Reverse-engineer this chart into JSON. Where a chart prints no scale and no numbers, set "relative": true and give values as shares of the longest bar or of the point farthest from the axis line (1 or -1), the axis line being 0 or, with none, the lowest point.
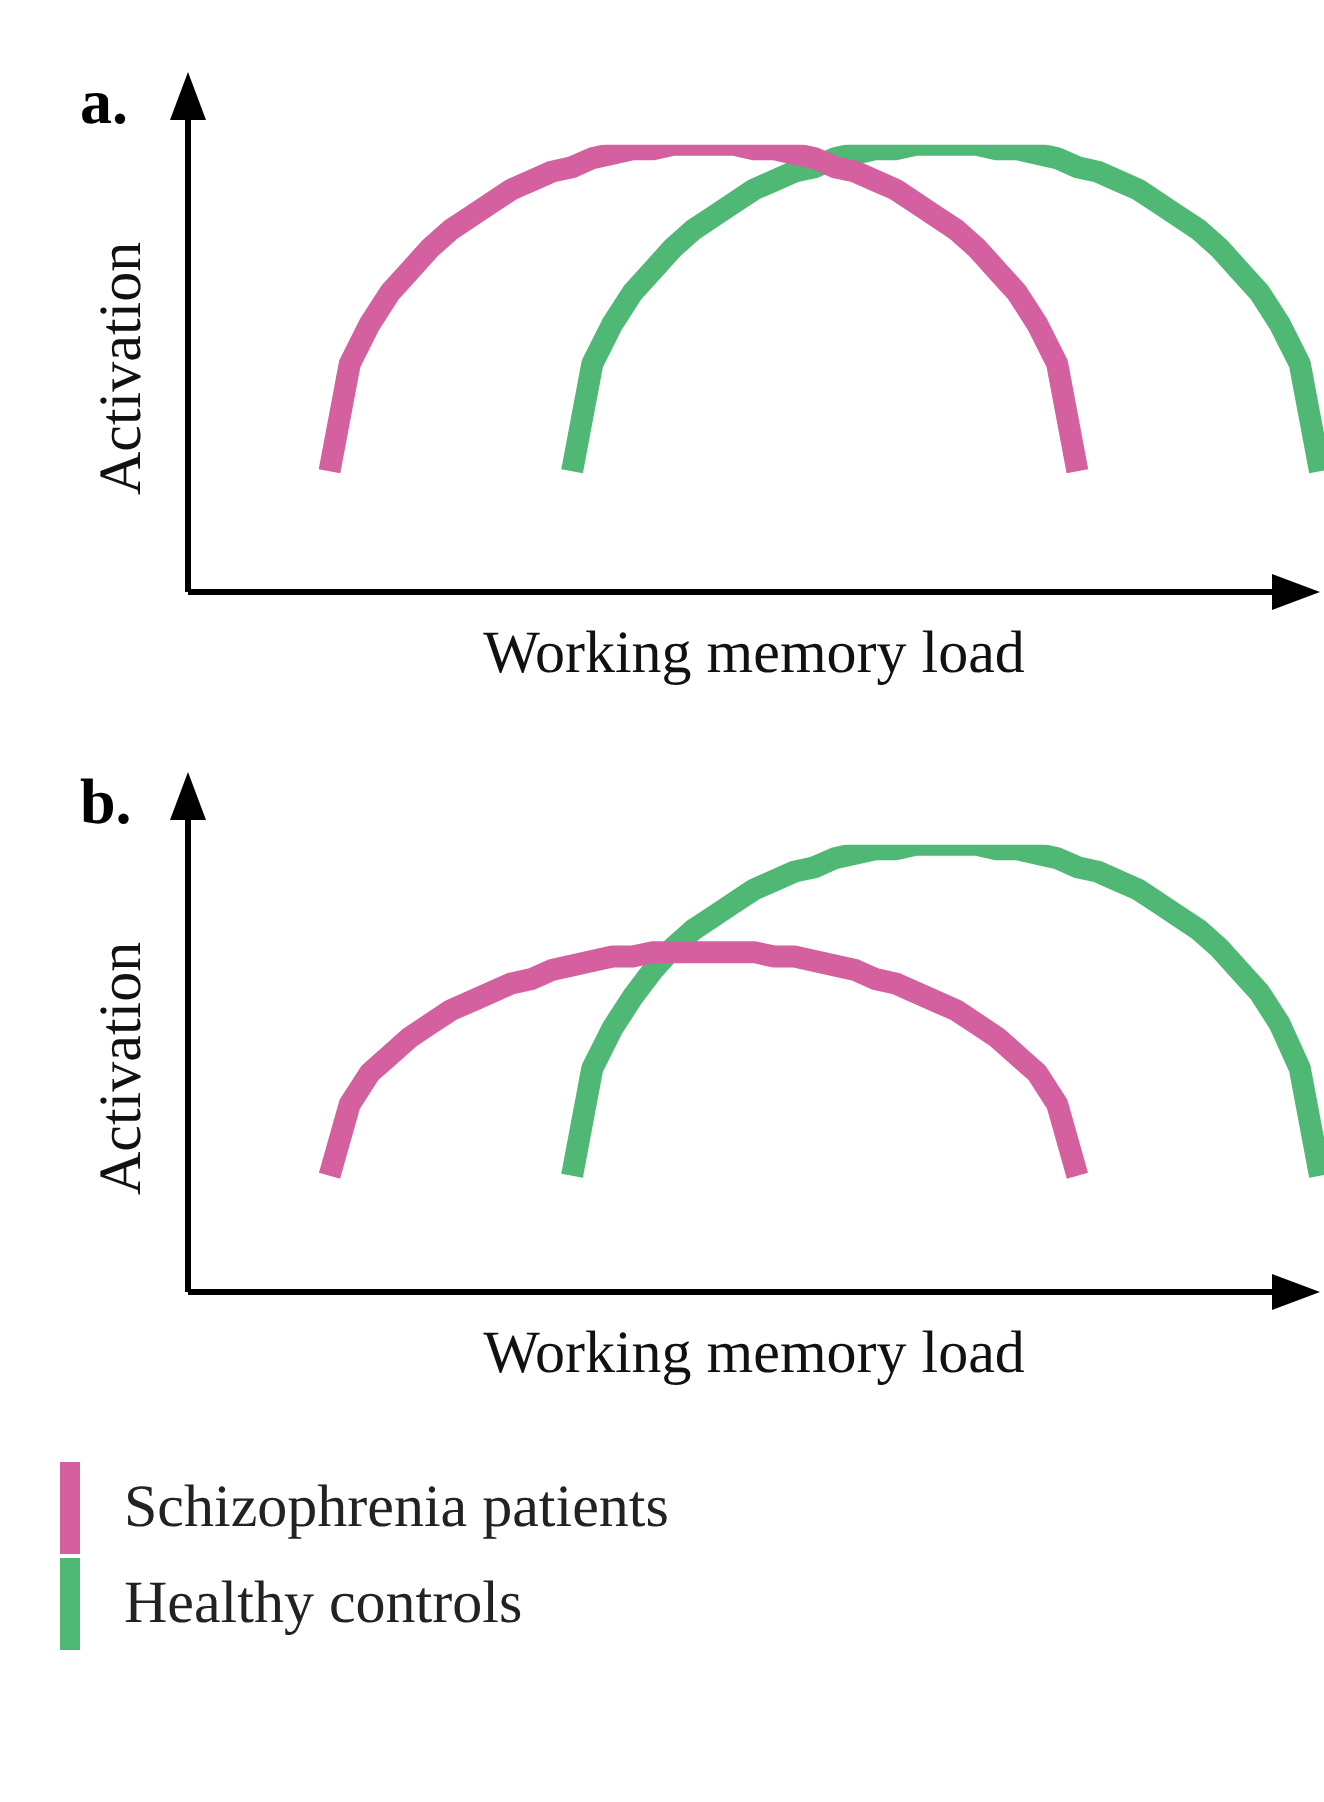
{
  "chart_data": [
    {
      "type": "line",
      "title": "a.",
      "xlabel": "Working memory load",
      "ylabel": "Activation",
      "relative": true,
      "tick_labels": false,
      "grid": false,
      "marker": "none",
      "line_style": "solid",
      "categories": [
        null,
        null,
        null,
        null,
        null,
        null,
        null,
        null,
        null,
        null,
        null,
        null,
        null,
        null,
        null,
        null,
        null,
        null,
        null,
        null,
        null,
        null,
        null,
        null,
        null,
        null,
        null,
        null,
        null,
        null,
        null,
        null,
        null,
        null,
        null,
        null,
        null,
        null,
        null,
        null,
        null,
        null,
        null,
        null,
        null,
        null,
        null,
        null,
        null,
        null,
        null,
        null,
        null,
        null,
        null,
        null,
        null
      ],
      "series": [
        {
          "color": "#d4609f",
          "values": [
            null,
            null,
            null,
            null,
            null,
            null,
            null,
            0.27,
            0.51,
            0.6,
            0.67,
            0.72,
            0.77,
            0.81,
            0.84,
            0.87,
            0.9,
            0.92,
            0.94,
            0.95,
            0.97,
            0.98,
            0.99,
            0.99,
            1,
            1,
            1,
            1,
            0.99,
            0.99,
            0.98,
            0.97,
            0.95,
            0.94,
            0.92,
            0.9,
            0.87,
            0.84,
            0.81,
            0.77,
            0.72,
            0.67,
            0.6,
            0.51,
            0.27,
            null,
            null,
            null,
            null,
            null,
            null,
            null,
            null,
            null,
            null,
            null,
            null
          ]
        },
        {
          "color": "#4fb874",
          "values": [
            null,
            null,
            null,
            null,
            null,
            null,
            null,
            null,
            null,
            null,
            null,
            null,
            null,
            null,
            null,
            null,
            null,
            null,
            null,
            0.27,
            0.51,
            0.6,
            0.67,
            0.72,
            0.77,
            0.81,
            0.84,
            0.87,
            0.9,
            0.92,
            0.94,
            0.95,
            0.97,
            0.98,
            0.99,
            0.99,
            1,
            1,
            1,
            1,
            0.99,
            0.99,
            0.98,
            0.97,
            0.95,
            0.94,
            0.92,
            0.9,
            0.87,
            0.84,
            0.81,
            0.77,
            0.72,
            0.67,
            0.6,
            0.51,
            0.27
          ]
        }
      ]
    },
    {
      "type": "line",
      "title": "b.",
      "xlabel": "Working memory load",
      "ylabel": "Activation",
      "relative": true,
      "tick_labels": false,
      "grid": false,
      "marker": "none",
      "line_style": "solid",
      "legend": "bottom left",
      "categories": [
        null,
        null,
        null,
        null,
        null,
        null,
        null,
        null,
        null,
        null,
        null,
        null,
        null,
        null,
        null,
        null,
        null,
        null,
        null,
        null,
        null,
        null,
        null,
        null,
        null,
        null,
        null,
        null,
        null,
        null,
        null,
        null,
        null,
        null,
        null,
        null,
        null,
        null,
        null,
        null,
        null,
        null,
        null,
        null,
        null,
        null,
        null,
        null,
        null,
        null,
        null,
        null,
        null,
        null,
        null,
        null,
        null
      ],
      "series": [
        {
          "name": "Schizophrenia patients",
          "color": "#d4609f",
          "values": [
            null,
            null,
            null,
            null,
            null,
            null,
            null,
            0.26,
            0.42,
            0.49,
            0.53,
            0.57,
            0.6,
            0.63,
            0.65,
            0.67,
            0.69,
            0.7,
            0.72,
            0.73,
            0.74,
            0.75,
            0.75,
            0.76,
            0.76,
            0.76,
            0.76,
            0.76,
            0.76,
            0.75,
            0.75,
            0.74,
            0.73,
            0.72,
            0.7,
            0.69,
            0.67,
            0.65,
            0.63,
            0.6,
            0.57,
            0.53,
            0.49,
            0.42,
            0.26,
            null,
            null,
            null,
            null,
            null,
            null,
            null,
            null,
            null,
            null,
            null,
            null
          ]
        },
        {
          "name": "Healthy controls",
          "color": "#4fb874",
          "values": [
            null,
            null,
            null,
            null,
            null,
            null,
            null,
            null,
            null,
            null,
            null,
            null,
            null,
            null,
            null,
            null,
            null,
            null,
            null,
            0.26,
            0.5,
            0.59,
            0.66,
            0.72,
            0.77,
            0.81,
            0.84,
            0.87,
            0.9,
            0.92,
            0.94,
            0.95,
            0.97,
            0.98,
            0.99,
            0.99,
            1,
            1,
            1,
            1,
            0.99,
            0.99,
            0.98,
            0.97,
            0.95,
            0.94,
            0.92,
            0.9,
            0.87,
            0.84,
            0.81,
            0.77,
            0.72,
            0.67,
            0.6,
            0.5,
            0.26
          ]
        }
      ]
    }
  ]
}
